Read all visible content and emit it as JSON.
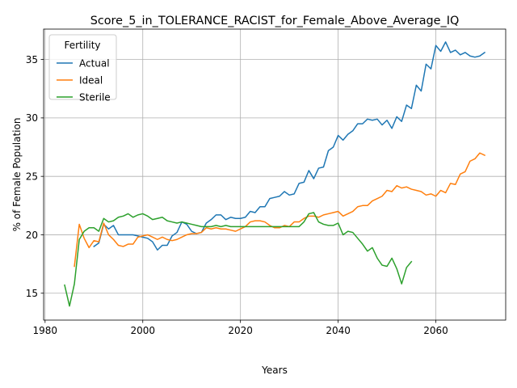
{
  "chart_data": {
    "type": "line",
    "title": "Score_5_in_TOLERANCE_RACIST_for_Female_Above_Average_IQ",
    "xlabel": "Years",
    "ylabel": "% of Female Population",
    "xlim": [
      1979.7,
      2074.3
    ],
    "ylim": [
      12.7,
      37.6
    ],
    "xticks": [
      1980,
      2000,
      2020,
      2040,
      2060
    ],
    "yticks": [
      15,
      20,
      25,
      30,
      35
    ],
    "grid": true,
    "legend": {
      "title": "Fertility",
      "placement": "upper-left"
    },
    "series": [
      {
        "name": "Actual",
        "color": "#1f77b4",
        "x": [
          1990,
          1991,
          1992,
          1993,
          1994,
          1995,
          1996,
          1997,
          1998,
          1999,
          2000,
          2001,
          2002,
          2003,
          2004,
          2005,
          2006,
          2007,
          2008,
          2009,
          2010,
          2011,
          2012,
          2013,
          2014,
          2015,
          2016,
          2017,
          2018,
          2019,
          2020,
          2021,
          2022,
          2023,
          2024,
          2025,
          2026,
          2027,
          2028,
          2029,
          2030,
          2031,
          2032,
          2033,
          2034,
          2035,
          2036,
          2037,
          2038,
          2039,
          2040,
          2041,
          2042,
          2043,
          2044,
          2045,
          2046,
          2047,
          2048,
          2049,
          2050,
          2051,
          2052,
          2053,
          2054,
          2055,
          2056,
          2057,
          2058,
          2059,
          2060,
          2061,
          2062,
          2063,
          2064,
          2065,
          2066,
          2067,
          2068,
          2069,
          2070
        ],
        "y": [
          19.0,
          19.3,
          20.9,
          20.5,
          20.8,
          20.0,
          20.0,
          20.0,
          20.0,
          19.9,
          19.8,
          19.7,
          19.4,
          18.7,
          19.1,
          19.1,
          19.9,
          20.2,
          21.1,
          20.9,
          20.3,
          20.1,
          20.2,
          21.0,
          21.3,
          21.7,
          21.7,
          21.3,
          21.5,
          21.4,
          21.4,
          21.5,
          22.0,
          21.9,
          22.4,
          22.4,
          23.1,
          23.2,
          23.3,
          23.7,
          23.4,
          23.5,
          24.4,
          24.5,
          25.5,
          24.8,
          25.7,
          25.8,
          27.2,
          27.5,
          28.5,
          28.1,
          28.6,
          28.9,
          29.5,
          29.5,
          29.9,
          29.8,
          29.9,
          29.4,
          29.8,
          29.1,
          30.1,
          29.7,
          31.1,
          30.8,
          32.8,
          32.3,
          34.6,
          34.2,
          36.2,
          35.7,
          36.5,
          35.6,
          35.8,
          35.4,
          35.6,
          35.3,
          35.2,
          35.3,
          35.6
        ]
      },
      {
        "name": "Ideal",
        "color": "#ff7f0e",
        "x": [
          1986,
          1987,
          1988,
          1989,
          1990,
          1991,
          1992,
          1993,
          1994,
          1995,
          1996,
          1997,
          1998,
          1999,
          2000,
          2001,
          2002,
          2003,
          2004,
          2005,
          2006,
          2007,
          2008,
          2009,
          2010,
          2011,
          2012,
          2013,
          2014,
          2015,
          2016,
          2017,
          2018,
          2019,
          2020,
          2021,
          2022,
          2023,
          2024,
          2025,
          2026,
          2027,
          2028,
          2029,
          2030,
          2031,
          2032,
          2033,
          2034,
          2035,
          2036,
          2037,
          2038,
          2039,
          2040,
          2041,
          2042,
          2043,
          2044,
          2045,
          2046,
          2047,
          2048,
          2049,
          2050,
          2051,
          2052,
          2053,
          2054,
          2055,
          2056,
          2057,
          2058,
          2059,
          2060,
          2061,
          2062,
          2063,
          2064,
          2065,
          2066,
          2067,
          2068,
          2069,
          2070
        ],
        "y": [
          17.3,
          20.9,
          19.7,
          18.9,
          19.5,
          19.4,
          21.0,
          20.0,
          19.6,
          19.1,
          19.0,
          19.2,
          19.2,
          19.8,
          19.9,
          20.0,
          19.8,
          19.6,
          19.8,
          19.6,
          19.5,
          19.6,
          19.8,
          20.0,
          20.1,
          20.1,
          20.2,
          20.6,
          20.5,
          20.6,
          20.5,
          20.5,
          20.4,
          20.3,
          20.5,
          20.7,
          21.1,
          21.2,
          21.2,
          21.1,
          20.8,
          20.6,
          20.6,
          20.8,
          20.7,
          21.1,
          21.1,
          21.4,
          21.6,
          21.6,
          21.5,
          21.7,
          21.8,
          21.9,
          22.0,
          21.6,
          21.8,
          22.0,
          22.4,
          22.5,
          22.5,
          22.9,
          23.1,
          23.3,
          23.8,
          23.7,
          24.2,
          24.0,
          24.1,
          23.9,
          23.8,
          23.7,
          23.4,
          23.5,
          23.3,
          23.8,
          23.6,
          24.4,
          24.3,
          25.2,
          25.4,
          26.3,
          26.5,
          27.0,
          26.8
        ]
      },
      {
        "name": "Sterile",
        "color": "#2ca02c",
        "x": [
          1984,
          1985,
          1986,
          1987,
          1988,
          1989,
          1990,
          1991,
          1992,
          1993,
          1994,
          1995,
          1996,
          1997,
          1998,
          1999,
          2000,
          2001,
          2002,
          2003,
          2004,
          2005,
          2006,
          2007,
          2008,
          2009,
          2010,
          2011,
          2012,
          2013,
          2014,
          2015,
          2016,
          2017,
          2018,
          2019,
          2020,
          2021,
          2022,
          2023,
          2024,
          2025,
          2026,
          2027,
          2028,
          2029,
          2030,
          2031,
          2032,
          2033,
          2034,
          2035,
          2036,
          2037,
          2038,
          2039,
          2040,
          2041,
          2042,
          2043,
          2044,
          2045,
          2046,
          2047,
          2048,
          2049,
          2050,
          2051,
          2052,
          2053,
          2054,
          2055
        ],
        "y": [
          15.7,
          13.9,
          15.8,
          19.6,
          20.3,
          20.6,
          20.6,
          20.3,
          21.4,
          21.1,
          21.2,
          21.5,
          21.6,
          21.8,
          21.5,
          21.7,
          21.8,
          21.6,
          21.3,
          21.4,
          21.5,
          21.2,
          21.1,
          21.0,
          21.1,
          21.0,
          20.9,
          20.8,
          20.7,
          20.7,
          20.7,
          20.8,
          20.7,
          20.8,
          20.7,
          20.7,
          20.7,
          20.7,
          20.7,
          20.7,
          20.7,
          20.7,
          20.7,
          20.7,
          20.7,
          20.7,
          20.7,
          20.7,
          20.7,
          21.1,
          21.8,
          21.9,
          21.1,
          20.9,
          20.8,
          20.8,
          21.0,
          20.0,
          20.3,
          20.2,
          19.7,
          19.2,
          18.6,
          18.9,
          18.0,
          17.4,
          17.3,
          18.0,
          17.1,
          15.8,
          17.2,
          17.7
        ]
      }
    ]
  }
}
